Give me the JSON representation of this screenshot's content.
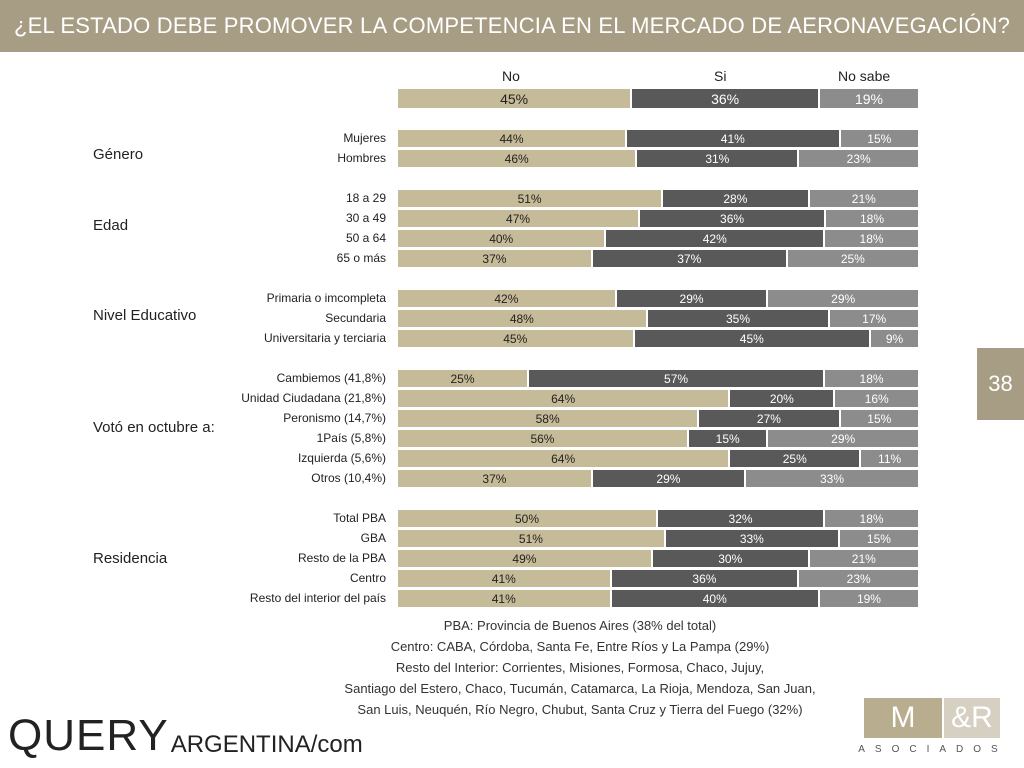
{
  "title": "¿EL ESTADO DEBE PROMOVER LA COMPETENCIA EN EL MERCADO DE AERONAVEGACIÓN?",
  "page_number": "38",
  "headers": {
    "no": "No",
    "si": "Si",
    "ns": "No sabe"
  },
  "colors": {
    "no": "#c6bb98",
    "si": "#595959",
    "ns": "#8c8c8c",
    "title_bar": "#a69d84"
  },
  "chart_data": {
    "type": "bar",
    "stacked": true,
    "orientation": "horizontal",
    "series": [
      {
        "name": "No",
        "color": "#c6bb98"
      },
      {
        "name": "Si",
        "color": "#595959"
      },
      {
        "name": "No sabe",
        "color": "#8c8c8c"
      }
    ],
    "overall": {
      "values": [
        45,
        36,
        19
      ],
      "labels": [
        "45%",
        "36%",
        "19%"
      ]
    },
    "groups": [
      {
        "name": "Género",
        "rows": [
          {
            "label": "Mujeres",
            "values": [
              44,
              41,
              15
            ],
            "labels": [
              "44%",
              "41%",
              "15%"
            ]
          },
          {
            "label": "Hombres",
            "values": [
              46,
              31,
              23
            ],
            "labels": [
              "46%",
              "31%",
              "23%"
            ]
          }
        ]
      },
      {
        "name": "Edad",
        "rows": [
          {
            "label": "18 a 29",
            "values": [
              51,
              28,
              21
            ],
            "labels": [
              "51%",
              "28%",
              "21%"
            ]
          },
          {
            "label": "30 a 49",
            "values": [
              47,
              36,
              18
            ],
            "labels": [
              "47%",
              "36%",
              "18%"
            ]
          },
          {
            "label": "50 a 64",
            "values": [
              40,
              42,
              18
            ],
            "labels": [
              "40%",
              "42%",
              "18%"
            ]
          },
          {
            "label": "65 o más",
            "values": [
              37,
              37,
              25
            ],
            "labels": [
              "37%",
              "37%",
              "25%"
            ]
          }
        ]
      },
      {
        "name": "Nivel Educativo",
        "rows": [
          {
            "label": "Primaria o imcompleta",
            "values": [
              42,
              29,
              29
            ],
            "labels": [
              "42%",
              "29%",
              "29%"
            ]
          },
          {
            "label": "Secundaria",
            "values": [
              48,
              35,
              17
            ],
            "labels": [
              "48%",
              "35%",
              "17%"
            ]
          },
          {
            "label": "Universitaria y terciaria",
            "values": [
              45,
              45,
              9
            ],
            "labels": [
              "45%",
              "45%",
              "9%"
            ]
          }
        ]
      },
      {
        "name": "Votó en octubre a:",
        "rows": [
          {
            "label": "Cambiemos (41,8%)",
            "values": [
              25,
              57,
              18
            ],
            "labels": [
              "25%",
              "57%",
              "18%"
            ]
          },
          {
            "label": "Unidad Ciudadana (21,8%)",
            "values": [
              64,
              20,
              16
            ],
            "labels": [
              "64%",
              "20%",
              "16%"
            ]
          },
          {
            "label": "Peronismo (14,7%)",
            "values": [
              58,
              27,
              15
            ],
            "labels": [
              "58%",
              "27%",
              "15%"
            ]
          },
          {
            "label": "1País (5,8%)",
            "values": [
              56,
              15,
              29
            ],
            "labels": [
              "56%",
              "15%",
              "29%"
            ]
          },
          {
            "label": "Izquierda (5,6%)",
            "values": [
              64,
              25,
              11
            ],
            "labels": [
              "64%",
              "25%",
              "11%"
            ]
          },
          {
            "label": "Otros (10,4%)",
            "values": [
              37,
              29,
              33
            ],
            "labels": [
              "37%",
              "29%",
              "33%"
            ]
          }
        ]
      },
      {
        "name": "Residencia",
        "rows": [
          {
            "label": "Total PBA",
            "values": [
              50,
              32,
              18
            ],
            "labels": [
              "50%",
              "32%",
              "18%"
            ]
          },
          {
            "label": "GBA",
            "values": [
              51,
              33,
              15
            ],
            "labels": [
              "51%",
              "33%",
              "15%"
            ]
          },
          {
            "label": "Resto de la PBA",
            "values": [
              49,
              30,
              21
            ],
            "labels": [
              "49%",
              "30%",
              "21%"
            ]
          },
          {
            "label": "Centro",
            "values": [
              41,
              36,
              23
            ],
            "labels": [
              "41%",
              "36%",
              "23%"
            ]
          },
          {
            "label": "Resto del interior del país",
            "values": [
              41,
              40,
              19
            ],
            "labels": [
              "41%",
              "40%",
              "19%"
            ]
          }
        ]
      }
    ]
  },
  "notes": [
    "PBA: Provincia de Buenos Aires (38% del total)",
    "Centro: CABA, Córdoba, Santa Fe, Entre Ríos y La Pampa (29%)",
    "Resto del Interior: Corrientes, Misiones, Formosa, Chaco, Jujuy,",
    "Santiago del Estero, Chaco, Tucumán, Catamarca, La Rioja, Mendoza, San Juan,",
    "San Luis, Neuquén, Río Negro, Chubut, Santa Cruz y Tierra del Fuego (32%)"
  ],
  "logos": {
    "query_main": "QUERY",
    "query_sub": "ARGENTINA/com",
    "mr_main_left": "M",
    "mr_main_right": "&R",
    "mr_sub": "ASOCIADOS"
  }
}
